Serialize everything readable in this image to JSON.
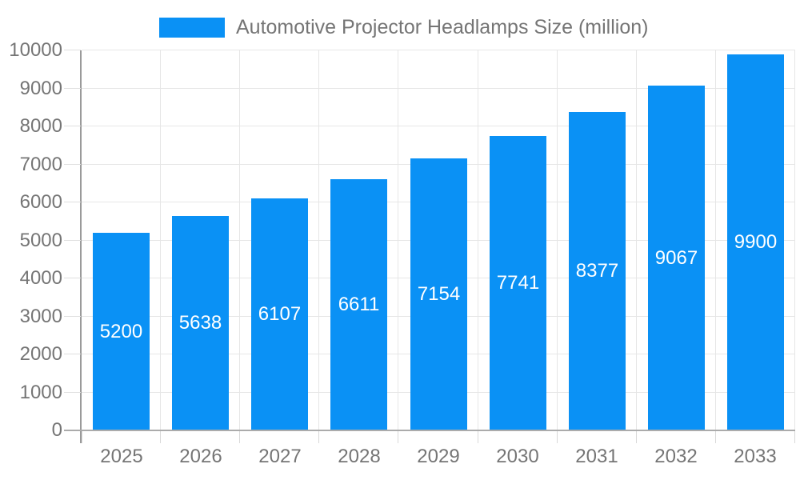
{
  "chart_data": {
    "type": "bar",
    "title": "",
    "series_name": "Automotive Projector Headlamps Size (million)",
    "categories": [
      "2025",
      "2026",
      "2027",
      "2028",
      "2029",
      "2030",
      "2031",
      "2032",
      "2033"
    ],
    "values": [
      5200,
      5638,
      6107,
      6611,
      7154,
      7741,
      8377,
      9067,
      9900
    ],
    "bar_labels": [
      "5200",
      "5638",
      "6107",
      "6611",
      "7154",
      "7741",
      "8377",
      "9067",
      "9900"
    ],
    "yticks": [
      0,
      1000,
      2000,
      3000,
      4000,
      5000,
      6000,
      7000,
      8000,
      9000,
      10000
    ],
    "ytick_labels": [
      "0",
      "1000",
      "2000",
      "3000",
      "4000",
      "5000",
      "6000",
      "7000",
      "8000",
      "9000",
      "10000"
    ],
    "ylim": [
      0,
      10000
    ],
    "xlabel": "",
    "ylabel": "",
    "grid": "on",
    "legend_position": "top",
    "colors": {
      "bar": "#0a91f5",
      "bar_label_text": "#ffffff",
      "axis_text": "#757575",
      "gridline": "#e6e6e6",
      "axis_line": "#9a9a9a",
      "background": "#ffffff"
    }
  }
}
